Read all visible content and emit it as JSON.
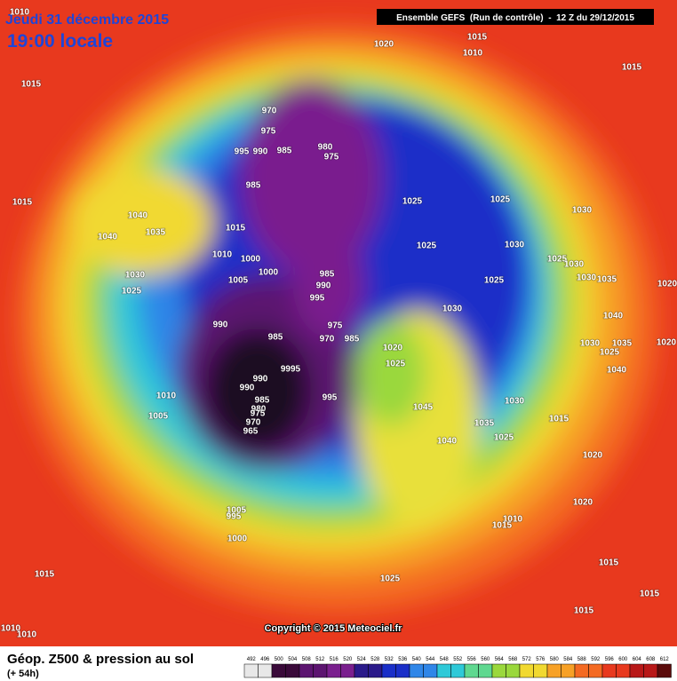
{
  "header": {
    "date": "Jeudi 31 décembre 2015",
    "time": "19:00 locale",
    "run": "Ensemble GEFS  (Run de contrôle)  -  12 Z du 29/12/2015"
  },
  "isobar_labels": [
    1010,
    1020,
    1015,
    1010,
    1015,
    1015,
    970,
    975,
    980,
    995,
    990,
    985,
    975,
    985,
    1025,
    1025,
    1030,
    1015,
    1040,
    1040,
    1035,
    1015,
    1025,
    1030,
    1010,
    1000,
    1025,
    1030,
    1000,
    985,
    1030,
    1025,
    1030,
    1035,
    1020,
    1025,
    1005,
    990,
    995,
    1030,
    1040,
    990,
    975,
    985,
    970,
    985,
    1030,
    1035,
    1020,
    1020,
    1025,
    1025,
    9995,
    1040,
    990,
    995,
    990,
    1010,
    985,
    980,
    975,
    1045,
    1030,
    1015,
    1005,
    970,
    1035,
    965,
    1040,
    1025,
    1020,
    1005,
    995,
    1000,
    1020,
    1010,
    1015,
    1015,
    1025,
    1015,
    1015,
    1015,
    1010,
    1010
  ],
  "copyright": "Copyright © 2015 Meteociel.fr",
  "footer": {
    "title": "Géop. Z500 & pression au sol",
    "lead": "(+ 54h)"
  },
  "scale": [
    492,
    496,
    500,
    504,
    508,
    512,
    516,
    520,
    524,
    528,
    532,
    536,
    540,
    544,
    548,
    552,
    556,
    560,
    564,
    568,
    572,
    576,
    580,
    584,
    588,
    592,
    596,
    600,
    604,
    608,
    612
  ]
}
